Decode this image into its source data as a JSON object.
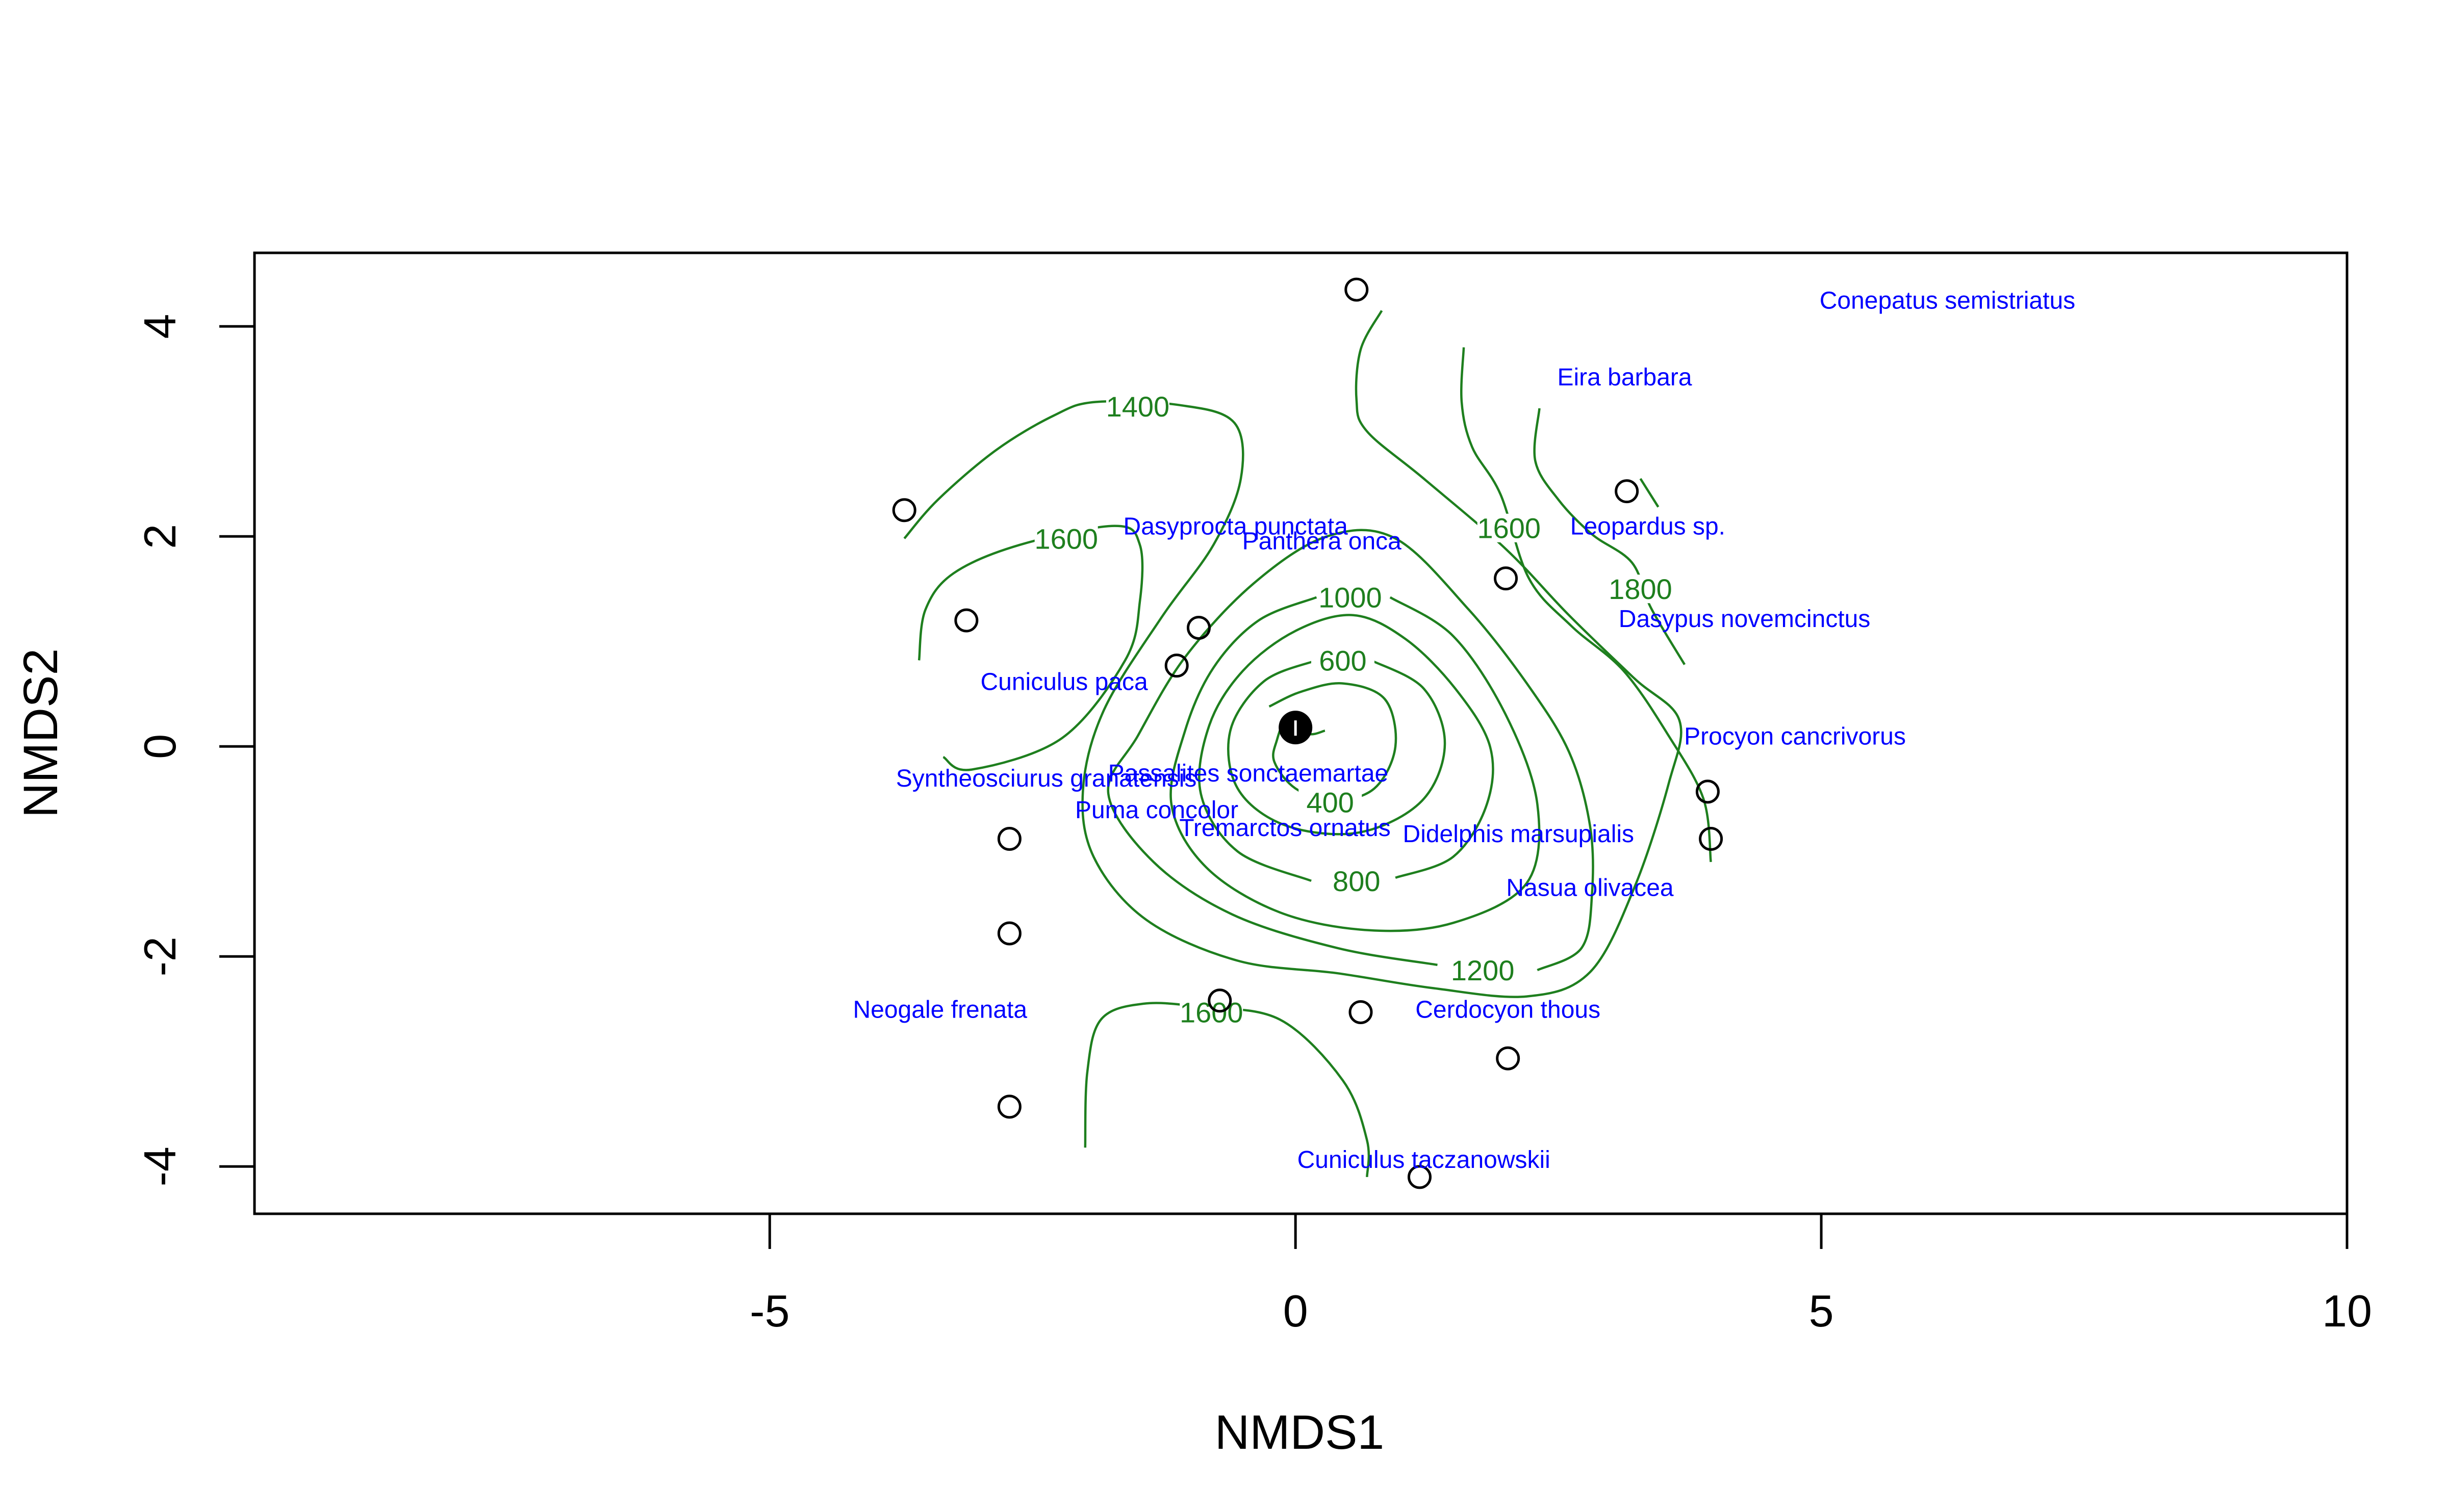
{
  "chart_data": {
    "type": "scatter",
    "title": "",
    "xlabel": "NMDS1",
    "ylabel": "NMDS2",
    "xlim": [
      -9.9,
      10.0
    ],
    "ylim": [
      -4.45,
      4.7
    ],
    "xticks": [
      -5,
      0,
      5,
      10
    ],
    "yticks": [
      -4,
      -2,
      0,
      2,
      4
    ],
    "grid": false,
    "legend": "none",
    "colors": {
      "sites": "#000000",
      "species": "#0000ff",
      "contours": "#1e7f1e"
    },
    "sites": [
      {
        "x": 0.58,
        "y": 4.35
      },
      {
        "x": -3.72,
        "y": 2.25
      },
      {
        "x": 3.15,
        "y": 2.43
      },
      {
        "x": 2.0,
        "y": 1.6
      },
      {
        "x": -3.13,
        "y": 1.2
      },
      {
        "x": -0.92,
        "y": 1.13
      },
      {
        "x": -1.13,
        "y": 0.77
      },
      {
        "x": 3.92,
        "y": -0.43
      },
      {
        "x": 3.95,
        "y": -0.88
      },
      {
        "x": -2.72,
        "y": -0.88
      },
      {
        "x": -2.72,
        "y": -1.78
      },
      {
        "x": -0.72,
        "y": -2.42
      },
      {
        "x": 0.62,
        "y": -2.53
      },
      {
        "x": 2.02,
        "y": -2.97
      },
      {
        "x": -2.72,
        "y": -3.43
      },
      {
        "x": 1.18,
        "y": -4.1
      }
    ],
    "centroid": {
      "x": 0.0,
      "y": 0.18
    },
    "species": [
      {
        "name": "Conepatus semistriatus",
        "x": 6.2,
        "y": 4.25
      },
      {
        "name": "Eira barbara",
        "x": 3.13,
        "y": 3.52
      },
      {
        "name": "Leopardus sp.",
        "x": 3.35,
        "y": 2.1
      },
      {
        "name": "Dasyprocta punctata",
        "x": -0.57,
        "y": 2.1
      },
      {
        "name": "Panthera onca",
        "x": 0.25,
        "y": 1.96
      },
      {
        "name": "Dasypus novemcinctus",
        "x": 4.27,
        "y": 1.22
      },
      {
        "name": "Cuniculus paca",
        "x": -2.2,
        "y": 0.62
      },
      {
        "name": "Procyon cancrivorus",
        "x": 4.75,
        "y": 0.1
      },
      {
        "name": "Syntheosciurus granatensis",
        "x": -2.37,
        "y": -0.3
      },
      {
        "name": "Passalites sonctaemartae",
        "x": -0.45,
        "y": -0.25
      },
      {
        "name": "Puma concolor",
        "x": -1.32,
        "y": -0.6
      },
      {
        "name": "Tremarctos ornatus",
        "x": -0.1,
        "y": -0.77
      },
      {
        "name": "Didelphis marsupialis",
        "x": 2.12,
        "y": -0.83
      },
      {
        "name": "Nasua olivacea",
        "x": 2.8,
        "y": -1.34
      },
      {
        "name": "Neogale frenata",
        "x": -3.38,
        "y": -2.5
      },
      {
        "name": "Cerdocyon thous",
        "x": 2.02,
        "y": -2.5
      },
      {
        "name": "Cuniculus taczanowskii",
        "x": 1.22,
        "y": -3.93
      }
    ],
    "contours": [
      {
        "level": 400,
        "label_at": {
          "x": 0.33,
          "y": -0.53
        },
        "points": [
          [
            0.28,
            0.15
          ],
          [
            0.12,
            0.12
          ],
          [
            -0.08,
            0.25
          ],
          [
            -0.18,
            0.05
          ],
          [
            -0.2,
            -0.15
          ],
          [
            0.0,
            -0.4
          ],
          [
            0.35,
            -0.52
          ],
          [
            0.75,
            -0.4
          ],
          [
            0.95,
            0.0
          ],
          [
            0.85,
            0.45
          ],
          [
            0.45,
            0.6
          ],
          [
            0.05,
            0.52
          ],
          [
            -0.25,
            0.38
          ]
        ]
      },
      {
        "level": 600,
        "label_at": {
          "x": 0.45,
          "y": 0.82
        },
        "points": [
          [
            0.2,
            0.82
          ],
          [
            -0.3,
            0.62
          ],
          [
            -0.62,
            0.15
          ],
          [
            -0.55,
            -0.4
          ],
          [
            -0.1,
            -0.75
          ],
          [
            0.6,
            -0.82
          ],
          [
            1.2,
            -0.52
          ],
          [
            1.42,
            0.02
          ],
          [
            1.22,
            0.55
          ],
          [
            0.72,
            0.82
          ]
        ]
      },
      {
        "level": 800,
        "label_at": {
          "x": 0.58,
          "y": -1.28
        },
        "points": [
          [
            0.15,
            -1.28
          ],
          [
            -0.55,
            -1.0
          ],
          [
            -0.9,
            -0.45
          ],
          [
            -0.82,
            0.2
          ],
          [
            -0.5,
            0.72
          ],
          [
            0.0,
            1.1
          ],
          [
            0.55,
            1.25
          ],
          [
            1.05,
            1.02
          ],
          [
            1.52,
            0.55
          ],
          [
            1.85,
            0.0
          ],
          [
            1.82,
            -0.55
          ],
          [
            1.5,
            -1.05
          ],
          [
            0.95,
            -1.25
          ]
        ]
      },
      {
        "level": 1000,
        "label_at": {
          "x": 0.52,
          "y": 1.42
        },
        "points": [
          [
            0.2,
            1.42
          ],
          [
            -0.35,
            1.2
          ],
          [
            -0.78,
            0.75
          ],
          [
            -1.05,
            0.15
          ],
          [
            -1.18,
            -0.55
          ],
          [
            -0.85,
            -1.15
          ],
          [
            -0.15,
            -1.58
          ],
          [
            0.7,
            -1.75
          ],
          [
            1.5,
            -1.68
          ],
          [
            2.2,
            -1.3
          ],
          [
            2.3,
            -0.55
          ],
          [
            2.0,
            0.3
          ],
          [
            1.5,
            1.05
          ],
          [
            0.9,
            1.42
          ]
        ]
      },
      {
        "level": 1200,
        "label_at": {
          "x": 1.78,
          "y": -2.13
        },
        "points": [
          [
            1.35,
            -2.08
          ],
          [
            0.4,
            -1.92
          ],
          [
            -0.6,
            -1.6
          ],
          [
            -1.35,
            -1.1
          ],
          [
            -1.78,
            -0.45
          ],
          [
            -1.5,
            0.1
          ],
          [
            -1.05,
            0.85
          ],
          [
            -0.4,
            1.55
          ],
          [
            0.3,
            2.0
          ],
          [
            0.95,
            1.98
          ],
          [
            1.65,
            1.3
          ],
          [
            2.2,
            0.6
          ],
          [
            2.6,
            -0.05
          ],
          [
            2.8,
            -0.75
          ],
          [
            2.82,
            -1.4
          ],
          [
            2.72,
            -1.92
          ],
          [
            2.3,
            -2.13
          ]
        ]
      },
      {
        "level": 1400,
        "label_at": {
          "x": -1.5,
          "y": 3.24
        },
        "points": [
          [
            -3.72,
            1.98
          ],
          [
            -3.4,
            2.35
          ],
          [
            -2.85,
            2.82
          ],
          [
            -2.3,
            3.15
          ],
          [
            -1.9,
            3.28
          ],
          [
            -1.1,
            3.25
          ],
          [
            -0.58,
            3.08
          ],
          [
            -0.52,
            2.55
          ],
          [
            -0.78,
            1.92
          ],
          [
            -1.28,
            1.22
          ],
          [
            -1.82,
            0.35
          ],
          [
            -2.02,
            -0.4
          ],
          [
            -1.92,
            -1.05
          ],
          [
            -1.42,
            -1.65
          ],
          [
            -0.55,
            -2.04
          ],
          [
            0.4,
            -2.16
          ],
          [
            1.3,
            -2.3
          ],
          [
            2.2,
            -2.38
          ],
          [
            2.8,
            -2.15
          ],
          [
            3.22,
            -1.35
          ],
          [
            3.55,
            -0.35
          ],
          [
            3.65,
            0.25
          ],
          [
            3.22,
            0.65
          ],
          [
            2.6,
            1.25
          ],
          [
            2.0,
            1.88
          ],
          [
            1.22,
            2.55
          ],
          [
            0.68,
            3.0
          ],
          [
            0.58,
            3.3
          ],
          [
            0.62,
            3.78
          ],
          [
            0.82,
            4.15
          ]
        ]
      },
      {
        "level": 1600,
        "label_at": {
          "x": -2.18,
          "y": 1.98
        },
        "points": [
          [
            -3.58,
            0.82
          ],
          [
            -3.52,
            1.3
          ],
          [
            -3.25,
            1.65
          ],
          [
            -2.62,
            1.92
          ],
          [
            -1.72,
            2.1
          ],
          [
            -1.48,
            1.92
          ],
          [
            -1.48,
            1.38
          ],
          [
            -1.62,
            0.82
          ],
          [
            -2.22,
            0.08
          ],
          [
            -3.08,
            -0.22
          ],
          [
            -3.35,
            -0.1
          ]
        ]
      },
      {
        "level": 1600,
        "label_at": {
          "x": 2.03,
          "y": 2.08
        },
        "points": [
          [
            1.6,
            3.8
          ],
          [
            1.58,
            3.28
          ],
          [
            1.68,
            2.85
          ],
          [
            1.95,
            2.4
          ],
          [
            2.22,
            1.6
          ],
          [
            2.62,
            1.15
          ],
          [
            3.12,
            0.72
          ],
          [
            3.55,
            0.1
          ],
          [
            3.88,
            -0.5
          ],
          [
            3.95,
            -1.1
          ]
        ]
      },
      {
        "level": 1600,
        "label_at": {
          "x": -0.8,
          "y": -2.53
        },
        "points": [
          [
            -2.0,
            -3.82
          ],
          [
            -1.98,
            -3.1
          ],
          [
            -1.85,
            -2.6
          ],
          [
            -1.45,
            -2.45
          ],
          [
            -0.9,
            -2.48
          ],
          [
            -0.15,
            -2.6
          ],
          [
            0.45,
            -3.18
          ],
          [
            0.68,
            -3.75
          ],
          [
            0.68,
            -4.1
          ]
        ]
      },
      {
        "level": 1800,
        "label_at": {
          "x": 3.28,
          "y": 1.5
        },
        "points": [
          [
            2.32,
            3.22
          ],
          [
            2.28,
            2.72
          ],
          [
            2.5,
            2.35
          ],
          [
            2.82,
            2.02
          ],
          [
            3.2,
            1.75
          ],
          [
            3.38,
            1.32
          ],
          [
            3.7,
            0.78
          ]
        ]
      },
      {
        "level": 1800,
        "label_at": null,
        "points": [
          [
            3.28,
            2.55
          ],
          [
            3.45,
            2.28
          ]
        ]
      }
    ]
  }
}
